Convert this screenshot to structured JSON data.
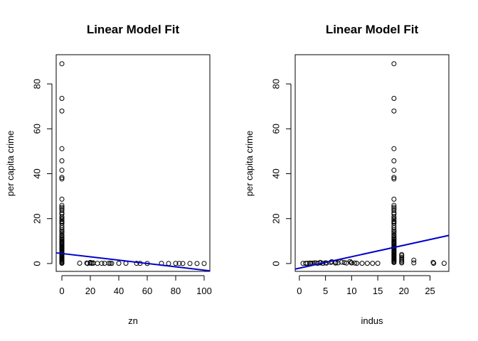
{
  "chart_data": [
    {
      "type": "scatter",
      "title": "Linear Model Fit",
      "xlabel": "zn",
      "ylabel": "per capita crime",
      "xlim": [
        -4,
        104
      ],
      "ylim": [
        -3.5,
        93
      ],
      "xticks": [
        0,
        20,
        40,
        60,
        80,
        100
      ],
      "yticks": [
        0,
        20,
        40,
        60,
        80
      ],
      "grid": false,
      "fit_line": {
        "intercept": 4.45,
        "slope": -0.074,
        "color": "#0000CD"
      },
      "series": [
        {
          "points": [
            [
              0,
              88.98
            ],
            [
              0,
              73.53
            ],
            [
              0,
              67.92
            ],
            [
              0,
              51.14
            ],
            [
              0,
              45.75
            ],
            [
              0,
              41.53
            ],
            [
              0,
              38.35
            ],
            [
              0,
              37.66
            ],
            [
              0,
              28.66
            ],
            [
              0,
              25.94
            ],
            [
              0,
              25.05
            ],
            [
              0,
              24.39
            ],
            [
              0,
              23.65
            ],
            [
              0,
              22.6
            ],
            [
              0,
              22.05
            ],
            [
              0,
              20.85
            ],
            [
              0,
              20.08
            ],
            [
              0,
              19.6
            ],
            [
              0,
              18.81
            ],
            [
              0,
              18.5
            ],
            [
              0,
              17.87
            ],
            [
              0,
              16.81
            ],
            [
              0,
              15.87
            ],
            [
              0,
              15.02
            ],
            [
              0,
              14.33
            ],
            [
              0,
              13.68
            ],
            [
              0,
              12.8
            ],
            [
              0,
              12.25
            ],
            [
              0,
              11.58
            ],
            [
              0,
              11.11
            ],
            [
              0,
              10.67
            ],
            [
              0,
              10.06
            ],
            [
              0,
              9.72
            ],
            [
              0,
              9.33
            ],
            [
              0,
              8.98
            ],
            [
              0,
              8.66
            ],
            [
              0,
              8.26
            ],
            [
              0,
              7.84
            ],
            [
              0,
              7.4
            ],
            [
              0,
              7.05
            ],
            [
              0,
              6.65
            ],
            [
              0,
              6.29
            ],
            [
              0,
              5.87
            ],
            [
              0,
              5.44
            ],
            [
              0,
              5.09
            ],
            [
              0,
              4.75
            ],
            [
              0,
              4.42
            ],
            [
              0,
              4.03
            ],
            [
              0,
              3.69
            ],
            [
              0,
              3.32
            ],
            [
              0,
              2.92
            ],
            [
              0,
              2.45
            ],
            [
              0,
              2.01
            ],
            [
              0,
              1.62
            ],
            [
              0,
              1.23
            ],
            [
              0,
              0.85
            ],
            [
              0,
              0.45
            ],
            [
              0,
              0.1
            ],
            [
              12.5,
              0.15
            ],
            [
              17.5,
              0.2
            ],
            [
              18,
              0.01
            ],
            [
              20,
              0.5
            ],
            [
              20,
              0.2
            ],
            [
              21,
              0.1
            ],
            [
              22,
              0.3
            ],
            [
              22,
              0.15
            ],
            [
              25,
              0.05
            ],
            [
              28,
              0.08
            ],
            [
              30,
              0.1
            ],
            [
              33,
              0.1
            ],
            [
              34,
              0.08
            ],
            [
              35,
              0.05
            ],
            [
              40,
              0.1
            ],
            [
              45,
              0.1
            ],
            [
              52.5,
              0.08
            ],
            [
              55,
              0.05
            ],
            [
              60,
              0.02
            ],
            [
              70,
              0.05
            ],
            [
              75,
              0.03
            ],
            [
              80,
              0.05
            ],
            [
              82.5,
              0.04
            ],
            [
              85,
              0.03
            ],
            [
              90,
              0.02
            ],
            [
              95,
              0.02
            ],
            [
              100,
              0.02
            ]
          ]
        }
      ]
    },
    {
      "type": "scatter",
      "title": "Linear Model Fit",
      "xlabel": "indus",
      "ylabel": "per capita crime",
      "xlim": [
        -0.8,
        28.6
      ],
      "ylim": [
        -3.5,
        93
      ],
      "xticks": [
        0,
        5,
        10,
        15,
        20,
        25
      ],
      "yticks": [
        0,
        20,
        40,
        60,
        80
      ],
      "grid": false,
      "fit_line": {
        "intercept": -2.06,
        "slope": 0.51,
        "color": "#0000CD"
      },
      "series": [
        {
          "points": [
            [
              18.1,
              88.98
            ],
            [
              18.1,
              73.53
            ],
            [
              18.1,
              67.92
            ],
            [
              18.1,
              51.14
            ],
            [
              18.1,
              45.75
            ],
            [
              18.1,
              41.53
            ],
            [
              18.1,
              38.35
            ],
            [
              18.1,
              37.66
            ],
            [
              18.1,
              28.66
            ],
            [
              18.1,
              25.94
            ],
            [
              18.1,
              25.05
            ],
            [
              18.1,
              24.39
            ],
            [
              18.1,
              23.65
            ],
            [
              18.1,
              22.6
            ],
            [
              18.1,
              22.05
            ],
            [
              18.1,
              20.85
            ],
            [
              18.1,
              20.08
            ],
            [
              18.1,
              19.6
            ],
            [
              18.1,
              18.81
            ],
            [
              18.1,
              18.5
            ],
            [
              18.1,
              17.87
            ],
            [
              18.1,
              16.81
            ],
            [
              18.1,
              15.87
            ],
            [
              18.1,
              15.02
            ],
            [
              18.1,
              14.33
            ],
            [
              18.1,
              13.68
            ],
            [
              18.1,
              12.8
            ],
            [
              18.1,
              12.25
            ],
            [
              18.1,
              11.58
            ],
            [
              18.1,
              11.11
            ],
            [
              18.1,
              10.67
            ],
            [
              18.1,
              10.06
            ],
            [
              18.1,
              9.72
            ],
            [
              18.1,
              9.33
            ],
            [
              18.1,
              8.98
            ],
            [
              18.1,
              8.66
            ],
            [
              18.1,
              8.26
            ],
            [
              18.1,
              7.84
            ],
            [
              18.1,
              7.4
            ],
            [
              18.1,
              7.05
            ],
            [
              18.1,
              6.65
            ],
            [
              18.1,
              6.29
            ],
            [
              18.1,
              5.87
            ],
            [
              18.1,
              5.44
            ],
            [
              18.1,
              5.09
            ],
            [
              18.1,
              4.75
            ],
            [
              18.1,
              4.42
            ],
            [
              18.1,
              4.03
            ],
            [
              18.1,
              3.69
            ],
            [
              18.1,
              3.32
            ],
            [
              18.1,
              2.92
            ],
            [
              18.1,
              2.45
            ],
            [
              18.1,
              2.01
            ],
            [
              18.1,
              1.62
            ],
            [
              18.1,
              1.23
            ],
            [
              18.1,
              0.85
            ],
            [
              18.1,
              0.45
            ],
            [
              19.58,
              4.0
            ],
            [
              19.58,
              3.5
            ],
            [
              19.58,
              2.7
            ],
            [
              19.58,
              2.0
            ],
            [
              19.58,
              1.4
            ],
            [
              19.58,
              0.8
            ],
            [
              19.58,
              0.3
            ],
            [
              0.7,
              0.05
            ],
            [
              1.2,
              0.05
            ],
            [
              1.5,
              0.1
            ],
            [
              2.0,
              0.2
            ],
            [
              2.2,
              0.1
            ],
            [
              2.5,
              0.15
            ],
            [
              2.9,
              0.3
            ],
            [
              3.2,
              0.2
            ],
            [
              3.5,
              0.1
            ],
            [
              4.0,
              0.5
            ],
            [
              4.0,
              0.3
            ],
            [
              4.5,
              0.1
            ],
            [
              5.0,
              0.3
            ],
            [
              5.2,
              0.2
            ],
            [
              6.0,
              0.5
            ],
            [
              6.2,
              0.8
            ],
            [
              6.9,
              0.2
            ],
            [
              7.0,
              0.5
            ],
            [
              7.4,
              0.3
            ],
            [
              8.1,
              0.6
            ],
            [
              8.6,
              0.4
            ],
            [
              9.0,
              0.2
            ],
            [
              9.7,
              0.9
            ],
            [
              9.9,
              0.4
            ],
            [
              10.0,
              0.3
            ],
            [
              10.6,
              0.2
            ],
            [
              11.0,
              0.1
            ],
            [
              12.0,
              0.1
            ],
            [
              13.0,
              0.1
            ],
            [
              14.0,
              0.1
            ],
            [
              15.0,
              0.1
            ],
            [
              21.9,
              1.5
            ],
            [
              21.9,
              0.3
            ],
            [
              25.6,
              0.5
            ],
            [
              25.7,
              0.1
            ],
            [
              27.7,
              0.1
            ]
          ]
        }
      ]
    }
  ]
}
